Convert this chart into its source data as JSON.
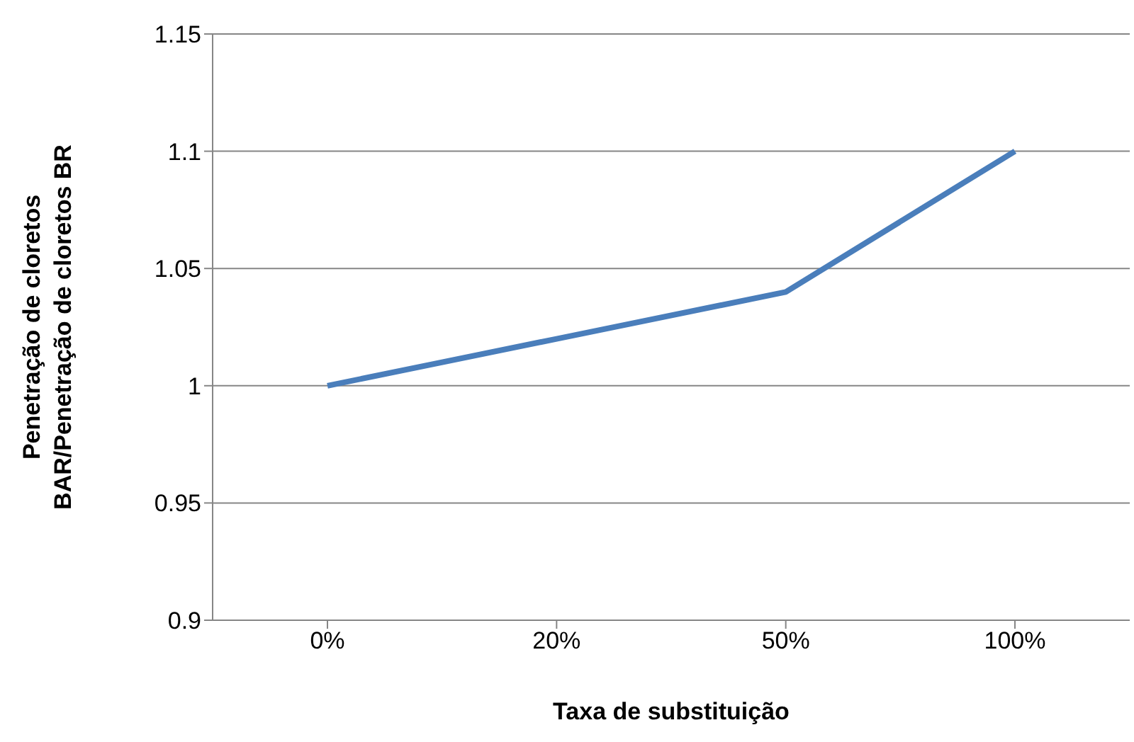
{
  "chart_data": {
    "type": "line",
    "xlabel": "Taxa de substituição",
    "ylabel": "Penetração de cloretos\nBAR/Penetração de cloretos BR",
    "categories": [
      "0%",
      "20%",
      "50%",
      "100%"
    ],
    "series": [
      {
        "color": "#4a7ebb",
        "values": [
          1,
          1.02,
          1.04,
          1.1
        ]
      }
    ],
    "ylim": [
      0.9,
      1.15
    ],
    "yticks": [
      0.9,
      0.95,
      1,
      1.05,
      1.1,
      1.15
    ],
    "grid": "y",
    "marker": "none",
    "line_style": "solid"
  }
}
